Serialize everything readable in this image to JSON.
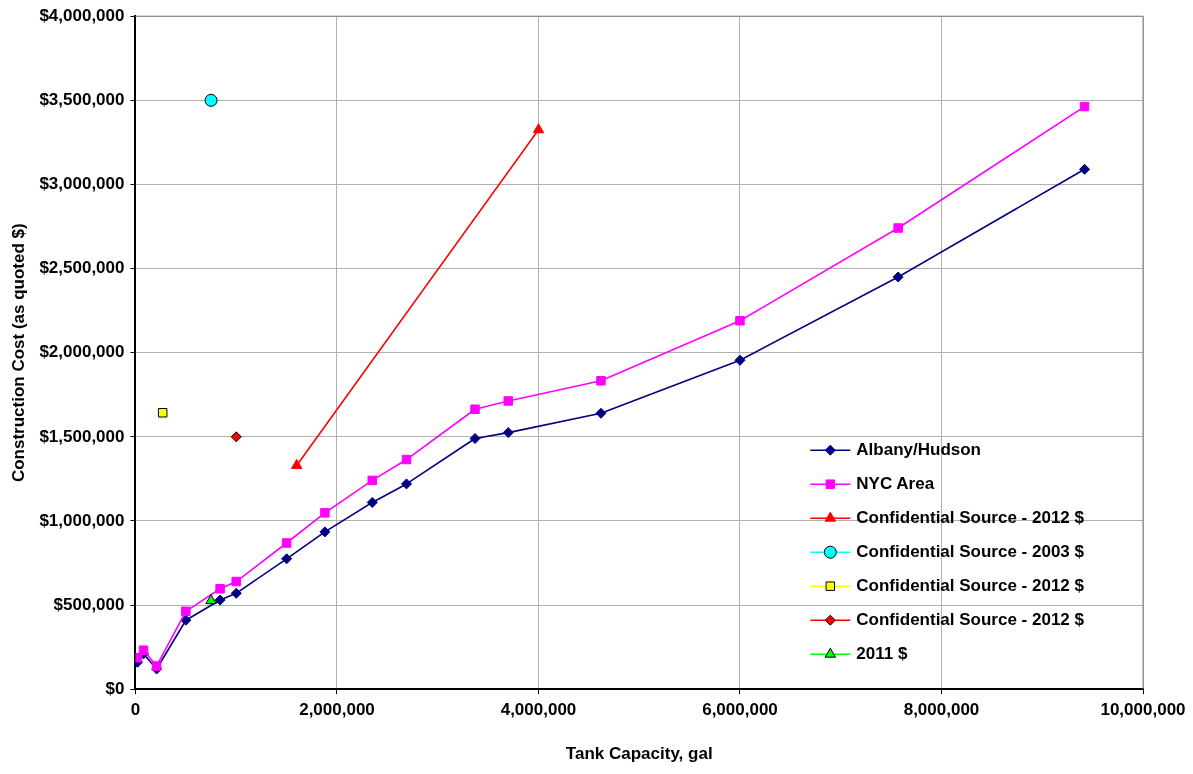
{
  "chart_data": {
    "type": "line",
    "xlabel": "Tank Capacity, gal",
    "ylabel": "Construction Cost (as quoted $)",
    "xlim": [
      0,
      10000000
    ],
    "ylim": [
      0,
      4000000
    ],
    "xticks": [
      {
        "value": 0,
        "label": "0"
      },
      {
        "value": 2000000,
        "label": "2,000,000"
      },
      {
        "value": 4000000,
        "label": "4,000,000"
      },
      {
        "value": 6000000,
        "label": "6,000,000"
      },
      {
        "value": 8000000,
        "label": "8,000,000"
      },
      {
        "value": 10000000,
        "label": "10,000,000"
      }
    ],
    "yticks": [
      {
        "value": 0,
        "label": "$0"
      },
      {
        "value": 500000,
        "label": "$500,000"
      },
      {
        "value": 1000000,
        "label": "$1,000,000"
      },
      {
        "value": 1500000,
        "label": "$1,500,000"
      },
      {
        "value": 2000000,
        "label": "$2,000,000"
      },
      {
        "value": 2500000,
        "label": "$2,500,000"
      },
      {
        "value": 3000000,
        "label": "$3,000,000"
      },
      {
        "value": 3500000,
        "label": "$3,500,000"
      },
      {
        "value": 4000000,
        "label": "$4,000,000"
      }
    ],
    "grid": true,
    "legend": "bottom right",
    "series": [
      {
        "name": "Albany/Hudson",
        "color": "#000080",
        "marker": "diamond",
        "x": [
          20000,
          80000,
          210000,
          500000,
          840000,
          1000000,
          1500000,
          1880000,
          2350000,
          2690000,
          3370000,
          3700000,
          4620000,
          6000000,
          7570000,
          9420000
        ],
        "values": [
          160000,
          210000,
          120000,
          410000,
          530000,
          570000,
          775000,
          935000,
          1110000,
          1220000,
          1490000,
          1525000,
          1640000,
          1955000,
          2450000,
          3090000
        ]
      },
      {
        "name": "NYC Area",
        "color": "#ff00ff",
        "marker": "square",
        "x": [
          20000,
          80000,
          210000,
          500000,
          840000,
          1000000,
          1500000,
          1880000,
          2350000,
          2690000,
          3370000,
          3700000,
          4620000,
          6000000,
          7570000,
          9420000
        ],
        "values": [
          187000,
          232000,
          138000,
          463000,
          597000,
          640000,
          869000,
          1048000,
          1241000,
          1365000,
          1664000,
          1713000,
          1833000,
          2190000,
          2741000,
          3463000
        ]
      },
      {
        "name": "Confidential Source - 2012 $",
        "color": "#ff0000",
        "marker": "triangle",
        "x": [
          1600000,
          4000000
        ],
        "values": [
          1330000,
          3325000
        ]
      },
      {
        "name": "Confidential Source - 2003 $",
        "color": "#00ffff",
        "marker": "circle",
        "x": [
          750000
        ],
        "values": [
          3500000
        ]
      },
      {
        "name": "Confidential Source - 2012 $",
        "color": "#ffff00",
        "marker": "square",
        "x": [
          270000
        ],
        "values": [
          1643000
        ]
      },
      {
        "name": "Confidential Source - 2012 $",
        "color": "#ff0000",
        "marker": "diamond",
        "x": [
          1000000
        ],
        "values": [
          1500000
        ]
      },
      {
        "name": "2011 $",
        "color": "#00ff00",
        "marker": "triangle",
        "x": [
          750000
        ],
        "values": [
          526000
        ]
      }
    ]
  }
}
